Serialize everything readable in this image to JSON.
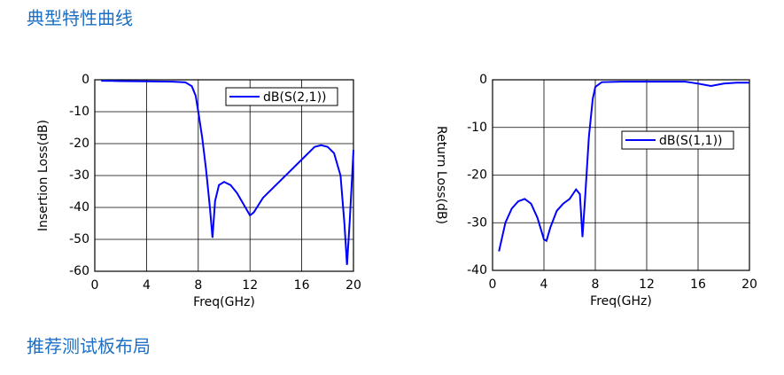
{
  "headings": [
    "典型特性曲线",
    "推荐测试板布局"
  ],
  "chart_data": [
    {
      "type": "line",
      "xlabel": "Freq(GHz)",
      "ylabel": "Insertion Loss(dB)",
      "xlim": [
        0,
        20
      ],
      "xticks": [
        0,
        4,
        8,
        12,
        16,
        20
      ],
      "ylim": [
        -60,
        0
      ],
      "yticks": [
        0,
        -10,
        -20,
        -30,
        -40,
        -50,
        -60
      ],
      "grid": true,
      "legend": "upper right",
      "x": [
        0.5,
        2,
        4,
        6,
        7,
        7.5,
        7.8,
        8,
        8.3,
        8.6,
        8.9,
        9.1,
        9.3,
        9.6,
        10,
        10.5,
        11,
        11.5,
        12,
        12.3,
        13,
        14,
        15,
        16,
        17,
        17.5,
        18,
        18.5,
        19,
        19.3,
        19.5,
        19.7,
        19.9,
        20
      ],
      "series": [
        {
          "name": "dB(S(2,1))",
          "color": "#0000ff",
          "values": [
            -0.3,
            -0.4,
            -0.5,
            -0.6,
            -0.8,
            -2,
            -5,
            -10,
            -18,
            -28,
            -40,
            -49.5,
            -38,
            -33,
            -32,
            -33,
            -35.5,
            -39,
            -42.5,
            -41.5,
            -37,
            -33,
            -29,
            -25,
            -21,
            -20.5,
            -21,
            -23,
            -30,
            -45,
            -58,
            -45,
            -30,
            -22
          ]
        }
      ]
    },
    {
      "type": "line",
      "xlabel": "Freq(GHz)",
      "ylabel": "Return Loss(dB)",
      "xlim": [
        0,
        20
      ],
      "xticks": [
        0,
        4,
        8,
        12,
        16,
        20
      ],
      "ylim": [
        -40,
        0
      ],
      "yticks": [
        0,
        -10,
        -20,
        -30,
        -40
      ],
      "grid": true,
      "legend": "right",
      "x": [
        0.5,
        1,
        1.5,
        2,
        2.5,
        3,
        3.5,
        4,
        4.2,
        4.5,
        5,
        5.5,
        6,
        6.5,
        6.8,
        7,
        7.2,
        7.5,
        7.8,
        8,
        8.5,
        10,
        12,
        14,
        15,
        16,
        17,
        18,
        19,
        20
      ],
      "series": [
        {
          "name": "dB(S(1,1))",
          "color": "#0000ff",
          "values": [
            -36,
            -30,
            -27,
            -25.5,
            -25,
            -26,
            -29,
            -33.5,
            -33.8,
            -31,
            -27.5,
            -26,
            -25,
            -23,
            -24,
            -33,
            -25,
            -12,
            -4,
            -1.5,
            -0.5,
            -0.4,
            -0.4,
            -0.4,
            -0.4,
            -0.8,
            -1.3,
            -0.8,
            -0.6,
            -0.6
          ]
        }
      ]
    }
  ]
}
